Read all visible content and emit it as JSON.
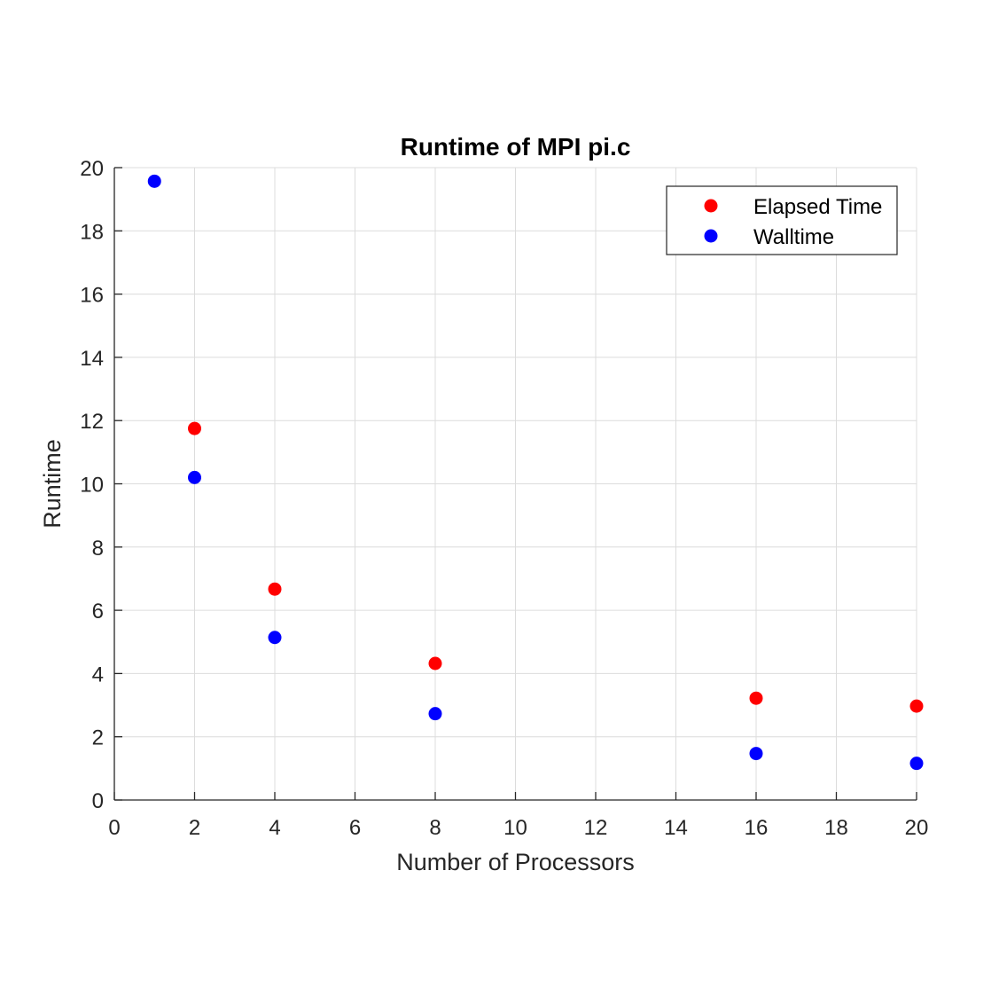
{
  "chart_data": {
    "type": "scatter",
    "title": "Runtime of MPI pi.c",
    "xlabel": "Number of Processors",
    "ylabel": "Runtime",
    "xlim": [
      0,
      20
    ],
    "ylim": [
      0,
      20
    ],
    "xticks": [
      0,
      2,
      4,
      6,
      8,
      10,
      12,
      14,
      16,
      18,
      20
    ],
    "yticks": [
      0,
      2,
      4,
      6,
      8,
      10,
      12,
      14,
      16,
      18,
      20
    ],
    "grid": true,
    "legend_position": "top-right",
    "series": [
      {
        "name": "Elapsed Time",
        "color": "#ff0000",
        "points": [
          {
            "x": 2,
            "y": 11.75
          },
          {
            "x": 4,
            "y": 6.67
          },
          {
            "x": 8,
            "y": 4.32
          },
          {
            "x": 16,
            "y": 3.22
          },
          {
            "x": 20,
            "y": 2.97
          }
        ]
      },
      {
        "name": "Walltime",
        "color": "#0000ff",
        "points": [
          {
            "x": 1,
            "y": 19.57
          },
          {
            "x": 2,
            "y": 10.2
          },
          {
            "x": 4,
            "y": 5.14
          },
          {
            "x": 8,
            "y": 2.73
          },
          {
            "x": 16,
            "y": 1.47
          },
          {
            "x": 20,
            "y": 1.16
          }
        ]
      }
    ]
  }
}
